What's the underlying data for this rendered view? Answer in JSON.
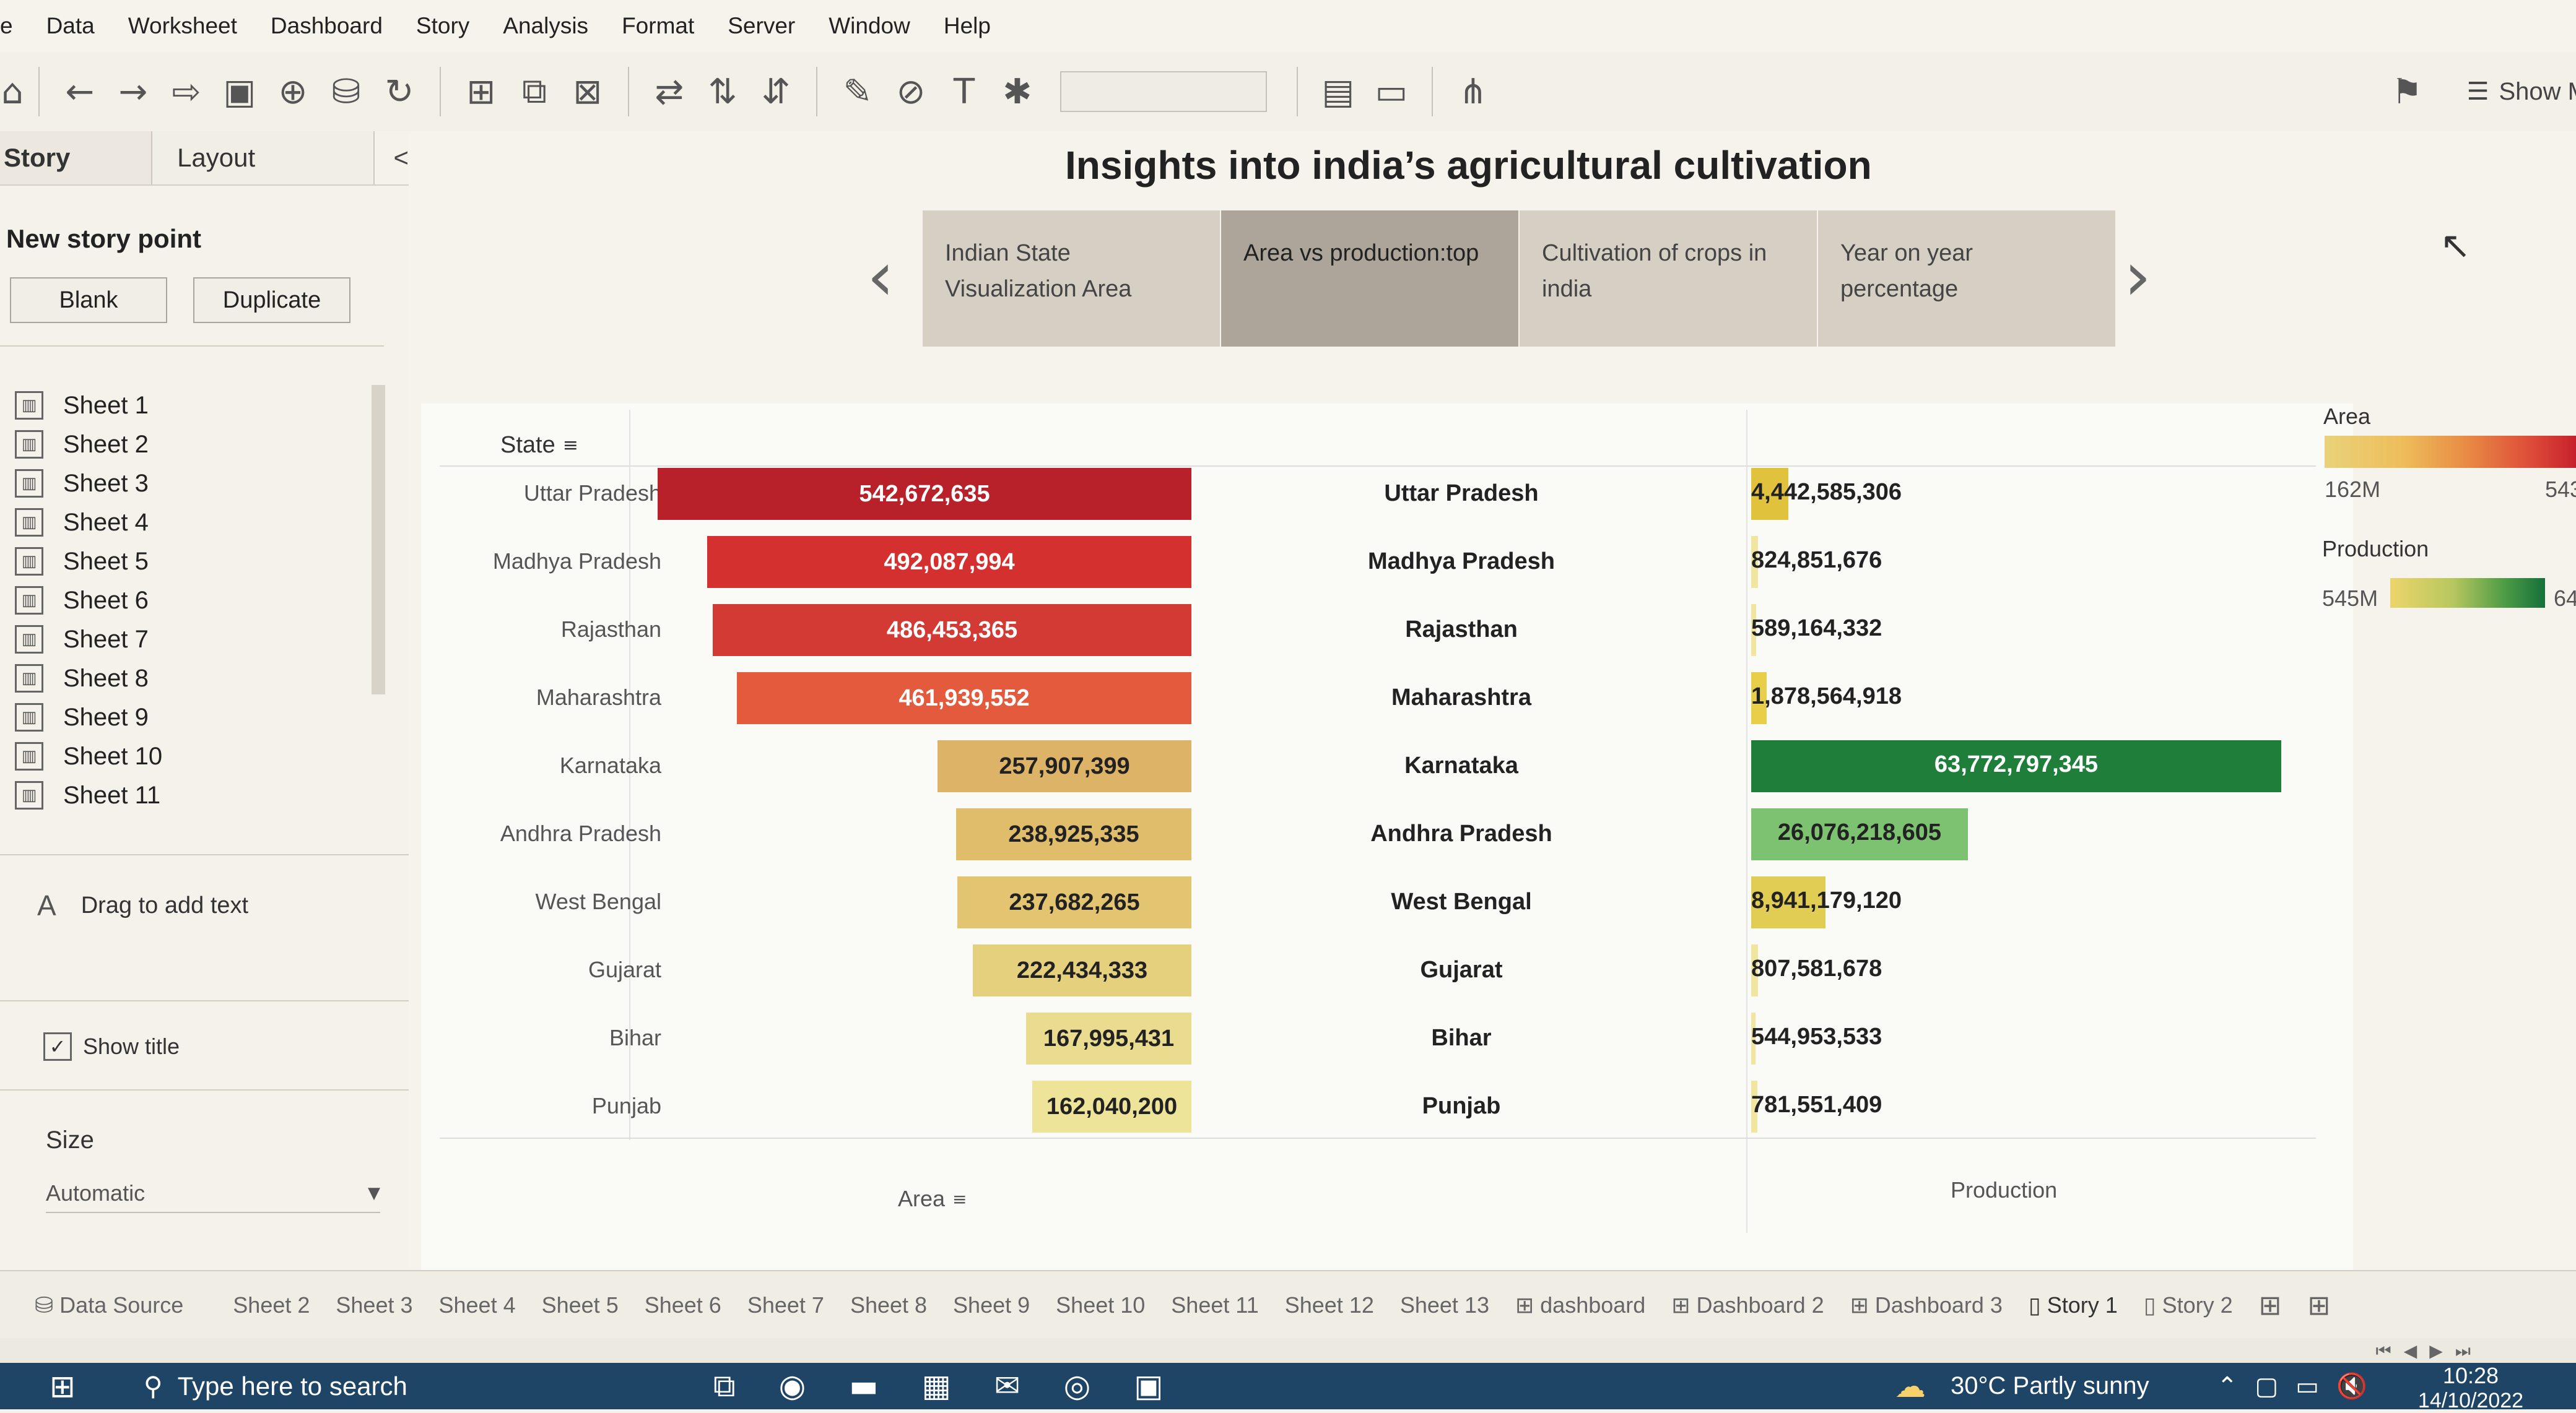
{
  "menu": [
    "e",
    "Data",
    "Worksheet",
    "Dashboard",
    "Story",
    "Analysis",
    "Format",
    "Server",
    "Window",
    "Help"
  ],
  "toolbar": {
    "show_me_label": "Show M"
  },
  "left_pane": {
    "tabs": [
      "Story",
      "Layout"
    ],
    "collapse_glyph": "<",
    "new_story_point": "New story point",
    "blank_label": "Blank",
    "duplicate_label": "Duplicate",
    "sheets": [
      "Sheet 1",
      "Sheet 2",
      "Sheet 3",
      "Sheet 4",
      "Sheet 5",
      "Sheet 6",
      "Sheet 7",
      "Sheet 8",
      "Sheet 9",
      "Sheet 10",
      "Sheet 11"
    ],
    "drag_text": "Drag to add text",
    "show_title": "Show title",
    "size_label": "Size",
    "size_value": "Automatic"
  },
  "story": {
    "title": "Insights into india’s agricultural cultivation",
    "points": [
      {
        "line1": "Indian State",
        "line2": "Visualization Area"
      },
      {
        "line1": "Area vs production:top",
        "line2": ""
      },
      {
        "line1": "Cultivation of crops in",
        "line2": "india"
      },
      {
        "line1": "Year on year",
        "line2": "percentage"
      }
    ]
  },
  "viz": {
    "state_header": "State",
    "area_axis_label": "Area",
    "production_axis_label": "Production",
    "legend": {
      "area_title": "Area",
      "area_min": "162M",
      "area_max": "543",
      "production_title": "Production",
      "production_min": "545M",
      "production_max": "64"
    }
  },
  "chart_data": {
    "type": "bar",
    "categories": [
      "Uttar Pradesh",
      "Madhya Pradesh",
      "Rajasthan",
      "Maharashtra",
      "Karnataka",
      "Andhra Pradesh",
      "West Bengal",
      "Gujarat",
      "Bihar",
      "Punjab"
    ],
    "series": [
      {
        "name": "Area",
        "values": [
          542672635,
          492087994,
          486453365,
          461939552,
          257907399,
          238925335,
          237682265,
          222434333,
          167995431,
          162040200
        ],
        "labels": [
          "542,672,635",
          "492,087,994",
          "486,453,365",
          "461,939,552",
          "257,907,399",
          "238,925,335",
          "237,682,265",
          "222,434,333",
          "167,995,431",
          "162,040,200"
        ]
      },
      {
        "name": "Production",
        "values": [
          4442585306,
          824851676,
          589164332,
          1878564918,
          63772797345,
          26076218605,
          8941179120,
          807581678,
          544953533,
          781551409
        ],
        "labels": [
          "4,442,585,306",
          "824,851,676",
          "589,164,332",
          "1,878,564,918",
          "63,772,797,345",
          "26,076,218,605",
          "8,941,179,120",
          "807,581,678",
          "544,953,533",
          "781,551,409"
        ]
      }
    ],
    "colors": {
      "area_bars": [
        "#b8202a",
        "#d3302f",
        "#d33a34",
        "#e45a3c",
        "#ddb368",
        "#e0bd6a",
        "#e3c470",
        "#e5d07e",
        "#e9dc8e",
        "#ede49a"
      ],
      "production_bars": [
        "#e0c23c",
        "#f0e6a0",
        "#f0e6a0",
        "#e8cf4a",
        "#1f7f3a",
        "#7cc270",
        "#e2cd54",
        "#f0e6a0",
        "#f0e6a0",
        "#f0e6a0"
      ]
    }
  },
  "sheet_tabs": [
    "Data Source",
    "Sheet 2",
    "Sheet 3",
    "Sheet 4",
    "Sheet 5",
    "Sheet 6",
    "Sheet 7",
    "Sheet 8",
    "Sheet 9",
    "Sheet 10",
    "Sheet 11",
    "Sheet 12",
    "Sheet 13",
    "dashboard",
    "Dashboard 2",
    "Dashboard 3",
    "Story 1",
    "Story 2"
  ],
  "taskbar": {
    "search_placeholder": "Type here to search",
    "weather": "30°C  Partly sunny",
    "time": "10:28",
    "date": "14/10/2022"
  }
}
